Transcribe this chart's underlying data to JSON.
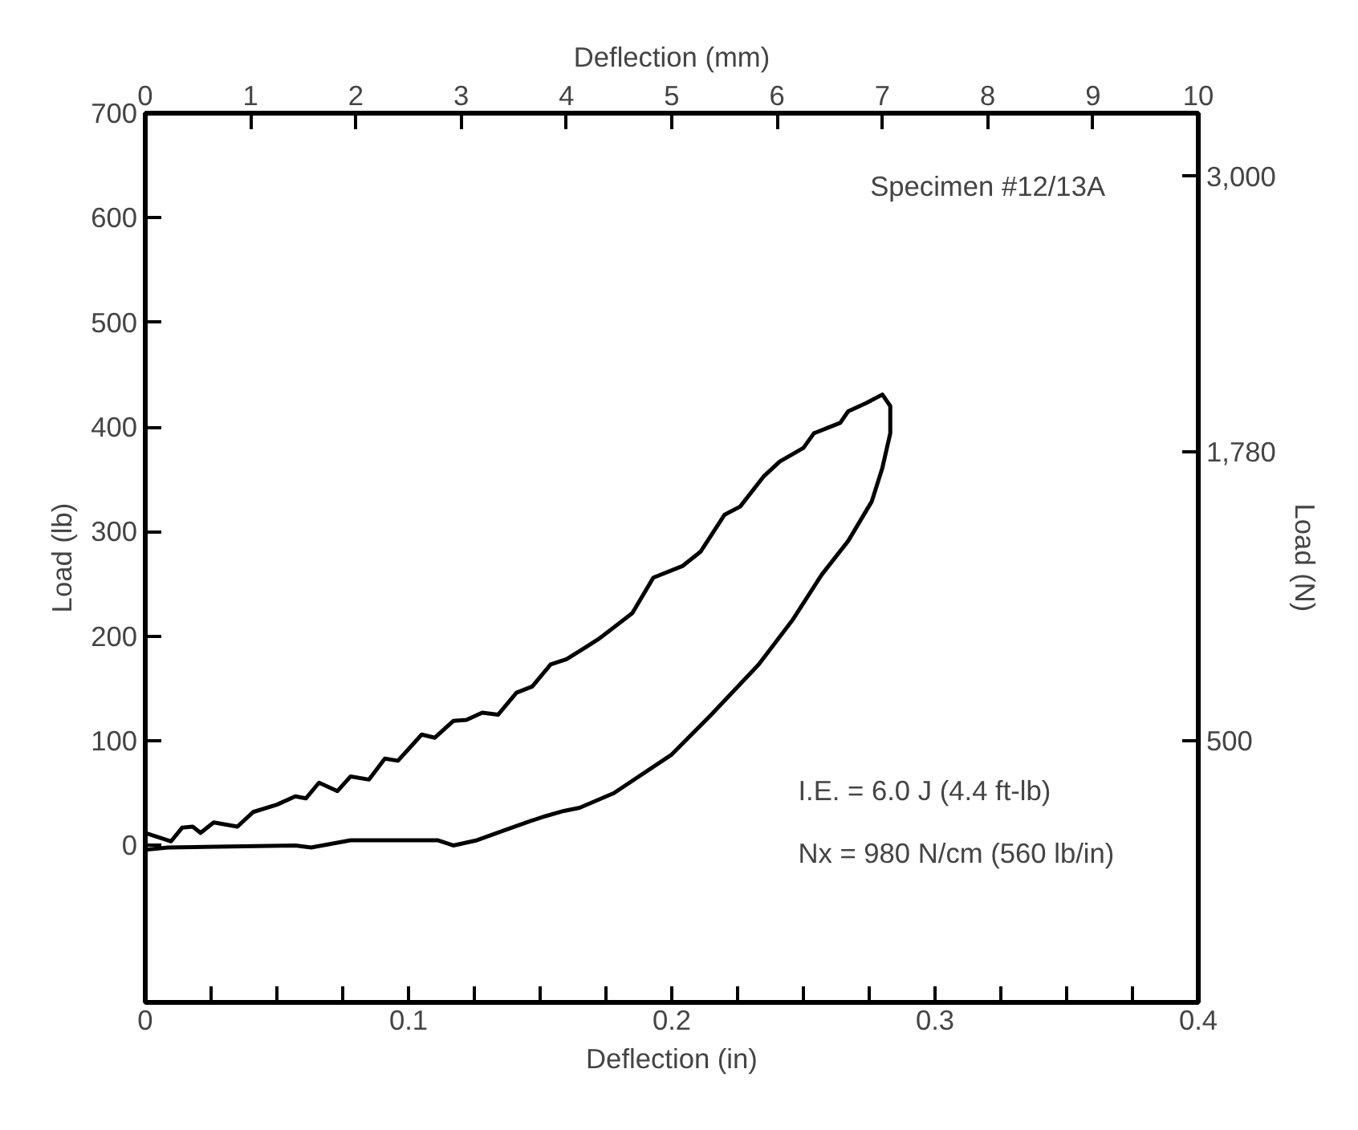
{
  "chart_data": {
    "type": "line",
    "xlabel": "Deflection (in)",
    "x2label": "Deflection (mm)",
    "ylabel": "Load (lb)",
    "y2label": "Load (N)",
    "xlim": [
      0,
      0.4
    ],
    "xticks": [
      0,
      {
        "value": 0.025,
        "label": null
      },
      {
        "value": 0.05,
        "label": null
      },
      {
        "value": 0.075,
        "label": null
      },
      0.1,
      {
        "value": 0.125,
        "label": null
      },
      {
        "value": 0.15,
        "label": null
      },
      {
        "value": 0.175,
        "label": null
      },
      0.2,
      {
        "value": 0.225,
        "label": null
      },
      {
        "value": 0.25,
        "label": null
      },
      {
        "value": 0.275,
        "label": null
      },
      0.3,
      {
        "value": 0.325,
        "label": null
      },
      {
        "value": 0.35,
        "label": null
      },
      {
        "value": 0.375,
        "label": null
      },
      0.4
    ],
    "x2lim": [
      0,
      10
    ],
    "x2ticks": [
      0,
      1,
      2,
      3,
      4,
      5,
      6,
      7,
      8,
      9,
      10
    ],
    "ylim": [
      -150,
      700
    ],
    "yticks": [
      0,
      100,
      200,
      300,
      400,
      500,
      600,
      700
    ],
    "y2lim": [
      -660,
      3280
    ],
    "y2ticks": [
      {
        "value": 500,
        "label": "500"
      },
      {
        "value": 1780,
        "label": "1,780"
      },
      {
        "value": 3000,
        "label": "3,000"
      }
    ],
    "grid": false,
    "marker": "none",
    "line_style": "solid",
    "series": [
      {
        "color": "#000000",
        "x": [
          0,
          0.0098,
          0.014,
          0.018,
          0.021,
          0.026,
          0.035,
          0.041,
          0.05,
          0.057,
          0.061,
          0.066,
          0.073,
          0.078,
          0.085,
          0.091,
          0.096,
          0.105,
          0.11,
          0.117,
          0.122,
          0.128,
          0.134,
          0.141,
          0.147,
          0.154,
          0.16,
          0.167,
          0.172,
          0.185,
          0.193,
          0.204,
          0.211,
          0.22,
          0.226,
          0.235,
          0.241,
          0.25,
          0.254,
          0.259,
          0.264,
          0.267,
          0.274,
          0.28,
          0.283,
          0.283,
          0.28,
          0.276,
          0.267,
          0.257,
          0.246,
          0.233,
          0.215,
          0.2,
          0.178,
          0.165,
          0.159,
          0.152,
          0.146,
          0.137,
          0.126,
          0.117,
          0.111,
          0.078,
          0.063,
          0.057,
          0.0087,
          0
        ],
        "values": [
          12,
          4,
          17,
          18,
          12,
          22,
          18,
          32,
          39,
          47,
          45,
          60,
          52,
          66,
          63,
          83,
          81,
          106,
          103,
          119,
          120,
          127,
          125,
          146,
          152,
          173,
          178,
          189,
          197,
          222,
          256,
          267,
          281,
          316,
          324,
          353,
          367,
          380,
          394,
          399,
          404,
          415,
          423,
          431,
          420,
          394,
          361,
          329,
          291,
          259,
          216,
          173,
          125,
          87,
          50,
          36,
          33,
          28,
          23,
          15,
          5,
          0,
          5,
          5,
          -2,
          0,
          -2,
          -4
        ]
      }
    ],
    "annotations": [
      "Specimen #12/13A",
      "I.E. = 6.0 J (4.4 ft-lb)",
      "Nx = 980 N/cm (560 lb/in)"
    ]
  }
}
